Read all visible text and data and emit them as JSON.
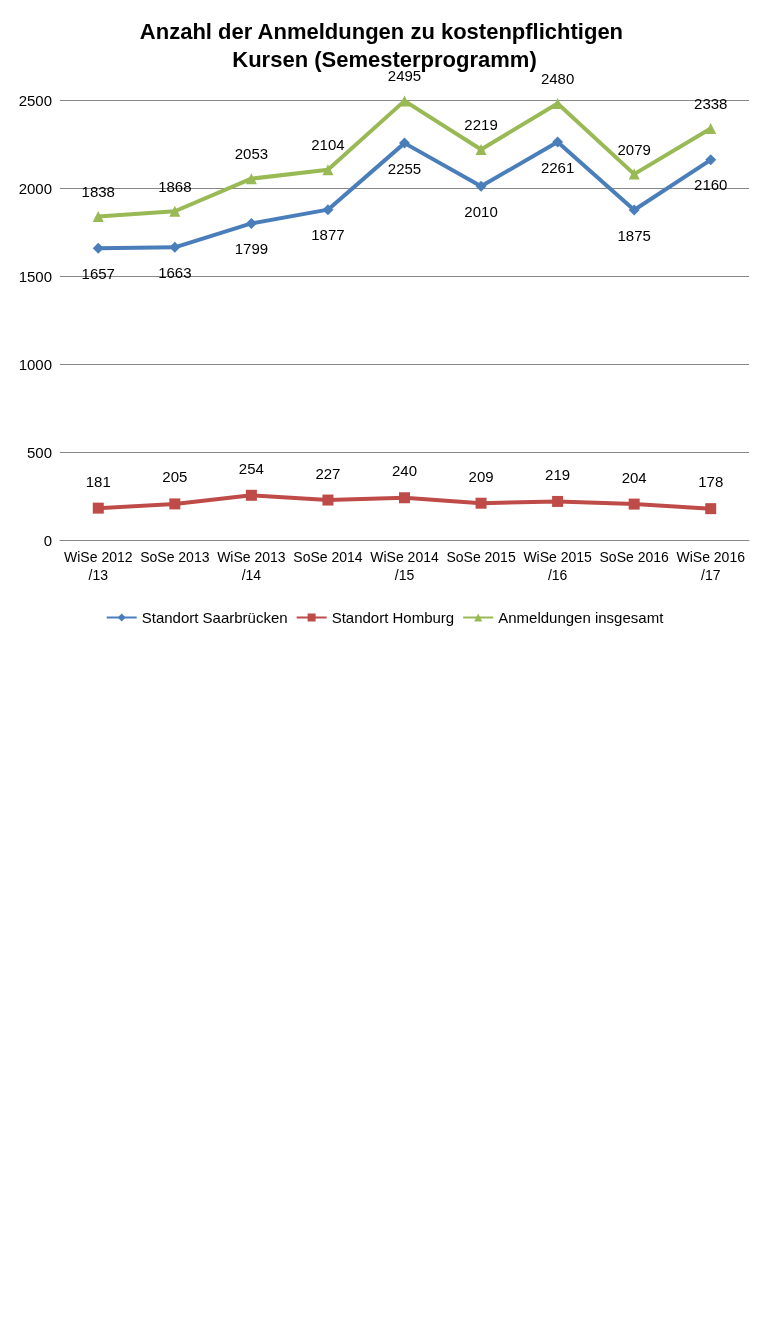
{
  "chart_data": {
    "type": "line",
    "title": "Anzahl der Anmeldungen zu kostenpflichtigen Kursen (Semesterprogramm)",
    "categories": [
      "WiSe 2012/13",
      "SoSe 2013",
      "WiSe 2013/14",
      "SoSe 2014",
      "WiSe 2014/15",
      "SoSe 2015",
      "WiSe 2015/16",
      "SoSe 2016",
      "WiSe 2016/17"
    ],
    "series": [
      {
        "name": "Standort Saarbrücken",
        "color": "#4a7ebb",
        "marker": "diamond",
        "values": [
          1657,
          1663,
          1799,
          1877,
          2255,
          2010,
          2261,
          1875,
          2160
        ]
      },
      {
        "name": "Standort Homburg",
        "color": "#be4b48",
        "marker": "square",
        "values": [
          181,
          205,
          254,
          227,
          240,
          209,
          219,
          204,
          178
        ]
      },
      {
        "name": "Anmeldungen insgesamt",
        "color": "#98b954",
        "marker": "triangle",
        "values": [
          1838,
          1868,
          2053,
          2104,
          2495,
          2219,
          2480,
          2079,
          2338
        ]
      }
    ],
    "ylim": [
      0,
      2500
    ],
    "yticks": [
      0,
      500,
      1000,
      1500,
      2000,
      2500
    ],
    "grid": "y",
    "legend": "bottom",
    "data_labels": true
  }
}
